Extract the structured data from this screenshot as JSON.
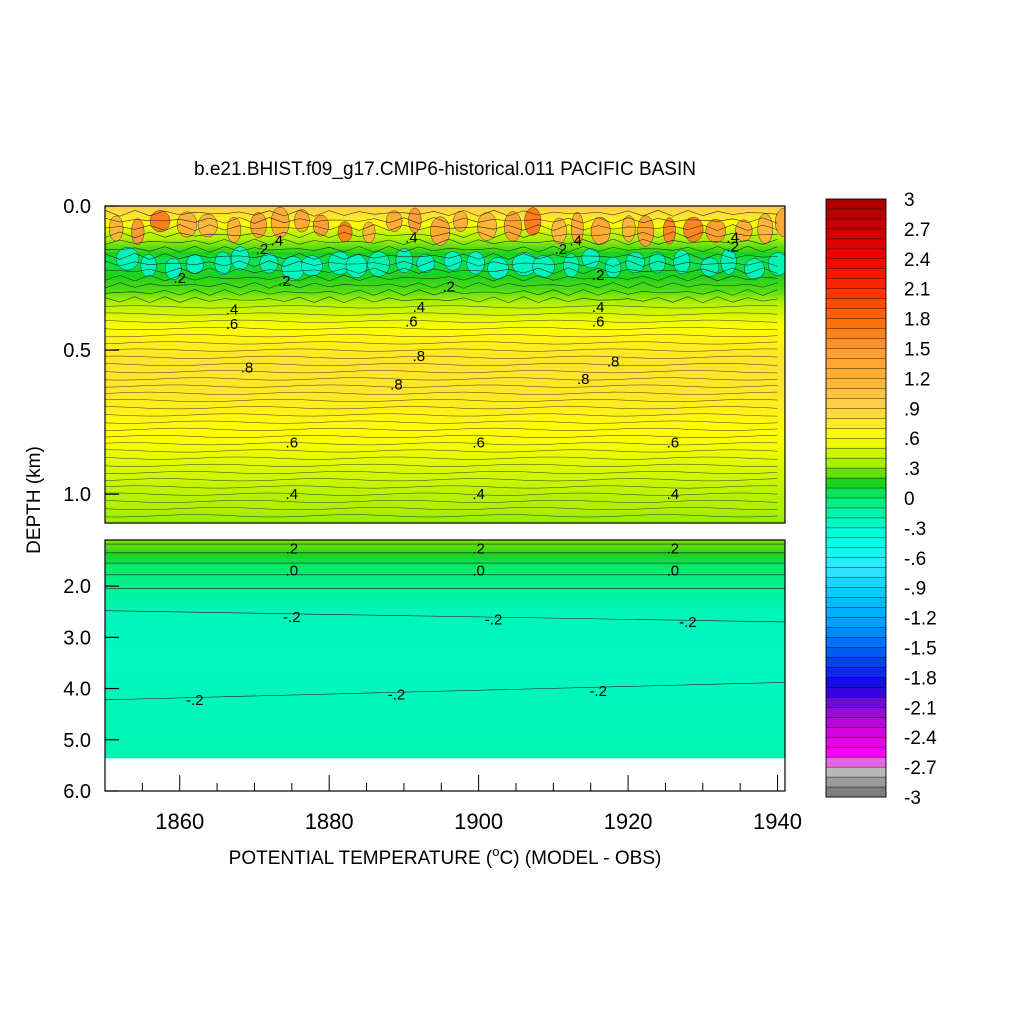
{
  "chart_data": {
    "type": "heatmap",
    "title": "b.e21.BHIST.f09_g17.CMIP6-historical.011 PACIFIC BASIN",
    "xlabel_main": "POTENTIAL TEMPERATURE (",
    "xlabel_unit_sup": "o",
    "xlabel_rest": "C) (MODEL - OBS)",
    "ylabel": "DEPTH (km)",
    "xlim": [
      1850,
      1941
    ],
    "x_ticks": [
      1860,
      1880,
      1900,
      1920,
      1940
    ],
    "x_tick_labels": [
      "1860",
      "1880",
      "1900",
      "1920",
      "1940"
    ],
    "upper_panel": {
      "ylim": [
        0.0,
        1.1
      ],
      "y_ticks": [
        0.0,
        0.5,
        1.0
      ],
      "y_tick_labels": [
        "0.0",
        "0.5",
        "1.0"
      ],
      "depth_profile": [
        {
          "depth": 0.0,
          "value": 0.95
        },
        {
          "depth": 0.04,
          "value": 0.75
        },
        {
          "depth": 0.09,
          "value": 0.45
        },
        {
          "depth": 0.14,
          "value": 0.25
        },
        {
          "depth": 0.19,
          "value": 0.05
        },
        {
          "depth": 0.24,
          "value": 0.15
        },
        {
          "depth": 0.29,
          "value": 0.22
        },
        {
          "depth": 0.34,
          "value": 0.38
        },
        {
          "depth": 0.4,
          "value": 0.55
        },
        {
          "depth": 0.46,
          "value": 0.68
        },
        {
          "depth": 0.55,
          "value": 0.8
        },
        {
          "depth": 0.65,
          "value": 0.76
        },
        {
          "depth": 0.78,
          "value": 0.62
        },
        {
          "depth": 0.9,
          "value": 0.5
        },
        {
          "depth": 1.0,
          "value": 0.4
        },
        {
          "depth": 1.1,
          "value": 0.33
        }
      ],
      "contour_labels": [
        {
          "x": 1873,
          "depth": 0.12,
          "text": ".4"
        },
        {
          "x": 1871,
          "depth": 0.15,
          "text": ".2"
        },
        {
          "x": 1891,
          "depth": 0.11,
          "text": ".4"
        },
        {
          "x": 1913,
          "depth": 0.12,
          "text": ".4"
        },
        {
          "x": 1911,
          "depth": 0.15,
          "text": ".2"
        },
        {
          "x": 1934,
          "depth": 0.11,
          "text": ".4"
        },
        {
          "x": 1934,
          "depth": 0.14,
          "text": ".2"
        },
        {
          "x": 1860,
          "depth": 0.25,
          "text": ".2"
        },
        {
          "x": 1874,
          "depth": 0.26,
          "text": ".2"
        },
        {
          "x": 1896,
          "depth": 0.28,
          "text": ".2"
        },
        {
          "x": 1916,
          "depth": 0.24,
          "text": ".2"
        },
        {
          "x": 1867,
          "depth": 0.36,
          "text": ".4"
        },
        {
          "x": 1867,
          "depth": 0.41,
          "text": ".6"
        },
        {
          "x": 1892,
          "depth": 0.35,
          "text": ".4"
        },
        {
          "x": 1891,
          "depth": 0.4,
          "text": ".6"
        },
        {
          "x": 1916,
          "depth": 0.35,
          "text": ".4"
        },
        {
          "x": 1916,
          "depth": 0.4,
          "text": ".6"
        },
        {
          "x": 1869,
          "depth": 0.56,
          "text": ".8"
        },
        {
          "x": 1892,
          "depth": 0.52,
          "text": ".8"
        },
        {
          "x": 1889,
          "depth": 0.62,
          "text": ".8"
        },
        {
          "x": 1918,
          "depth": 0.54,
          "text": ".8"
        },
        {
          "x": 1914,
          "depth": 0.6,
          "text": ".8"
        },
        {
          "x": 1875,
          "depth": 0.82,
          "text": ".6"
        },
        {
          "x": 1900,
          "depth": 0.82,
          "text": ".6"
        },
        {
          "x": 1926,
          "depth": 0.82,
          "text": ".6"
        },
        {
          "x": 1875,
          "depth": 1.0,
          "text": ".4"
        },
        {
          "x": 1900,
          "depth": 1.0,
          "text": ".4"
        },
        {
          "x": 1926,
          "depth": 1.0,
          "text": ".4"
        }
      ]
    },
    "lower_panel": {
      "ylim": [
        1.1,
        6.0
      ],
      "y_ticks": [
        2.0,
        3.0,
        4.0,
        5.0,
        6.0
      ],
      "y_tick_labels": [
        "2.0",
        "3.0",
        "4.0",
        "5.0",
        "6.0"
      ],
      "data_bottom_depth": 5.35,
      "depth_profile": [
        {
          "depth": 1.1,
          "value": 0.28
        },
        {
          "depth": 1.3,
          "value": 0.2
        },
        {
          "depth": 1.55,
          "value": 0.05
        },
        {
          "depth": 1.8,
          "value": -0.02
        },
        {
          "depth": 2.1,
          "value": -0.1
        },
        {
          "depth": 2.5,
          "value": -0.2
        },
        {
          "depth": 3.5,
          "value": -0.24
        },
        {
          "depth": 4.2,
          "value": -0.2
        },
        {
          "depth": 5.35,
          "value": -0.18
        }
      ],
      "contour_labels": [
        {
          "x": 1875,
          "depth": 1.25,
          "text": ".2"
        },
        {
          "x": 1900,
          "depth": 1.25,
          "text": ".2"
        },
        {
          "x": 1926,
          "depth": 1.25,
          "text": ".2"
        },
        {
          "x": 1875,
          "depth": 1.68,
          "text": ".0"
        },
        {
          "x": 1900,
          "depth": 1.68,
          "text": ".0"
        },
        {
          "x": 1926,
          "depth": 1.68,
          "text": ".0"
        },
        {
          "x": 1875,
          "depth": 2.58,
          "text": "-.2"
        },
        {
          "x": 1902,
          "depth": 2.63,
          "text": "-.2"
        },
        {
          "x": 1928,
          "depth": 2.68,
          "text": "-.2"
        },
        {
          "x": 1862,
          "depth": 4.2,
          "text": "-.2"
        },
        {
          "x": 1889,
          "depth": 4.1,
          "text": "-.2"
        },
        {
          "x": 1916,
          "depth": 4.03,
          "text": "-.2"
        }
      ]
    },
    "colorbar": {
      "min": -3.0,
      "max": 3.0,
      "levels": 60,
      "labels": [
        "3",
        "2.7",
        "2.4",
        "2.1",
        "1.8",
        "1.5",
        "1.2",
        ".9",
        ".6",
        ".3",
        "0",
        "-.3",
        "-.6",
        "-.9",
        "-1.2",
        "-1.5",
        "-1.8",
        "-2.1",
        "-2.4",
        "-2.7",
        "-3"
      ],
      "color_stops": [
        {
          "v": 3.0,
          "c": "#a50000"
        },
        {
          "v": 2.4,
          "c": "#f20000"
        },
        {
          "v": 2.1,
          "c": "#ff2a00"
        },
        {
          "v": 1.8,
          "c": "#ff6a00"
        },
        {
          "v": 1.5,
          "c": "#ff9a33"
        },
        {
          "v": 1.2,
          "c": "#ffb233"
        },
        {
          "v": 0.9,
          "c": "#ffd24a"
        },
        {
          "v": 0.6,
          "c": "#ffff00"
        },
        {
          "v": 0.35,
          "c": "#a8ef00"
        },
        {
          "v": 0.15,
          "c": "#1bd21b"
        },
        {
          "v": 0.0,
          "c": "#00ee77"
        },
        {
          "v": -0.2,
          "c": "#00f5b8"
        },
        {
          "v": -0.4,
          "c": "#00ffe5"
        },
        {
          "v": -0.7,
          "c": "#33e8ff"
        },
        {
          "v": -1.0,
          "c": "#00c4ff"
        },
        {
          "v": -1.3,
          "c": "#0096ff"
        },
        {
          "v": -1.6,
          "c": "#0050f0"
        },
        {
          "v": -1.9,
          "c": "#1a00e0"
        },
        {
          "v": -2.1,
          "c": "#8a10d0"
        },
        {
          "v": -2.4,
          "c": "#e000e0"
        },
        {
          "v": -2.6,
          "c": "#ff00ff"
        },
        {
          "v": -2.7,
          "c": "#c8c8c8"
        },
        {
          "v": -3.0,
          "c": "#6e6e6e"
        }
      ]
    }
  }
}
